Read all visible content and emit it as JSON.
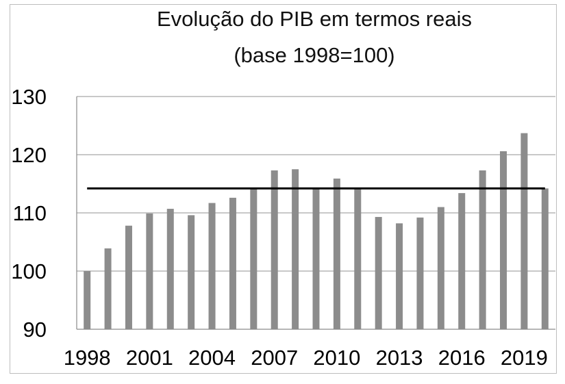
{
  "chart_data": {
    "type": "bar",
    "title": "Evolução do PIB em termos reais",
    "subtitle": "(base 1998=100)",
    "xlabel": "",
    "ylabel": "",
    "categories": [
      "1998",
      "1999",
      "2000",
      "2001",
      "2002",
      "2003",
      "2004",
      "2005",
      "2006",
      "2007",
      "2008",
      "2009",
      "2010",
      "2011",
      "2012",
      "2013",
      "2014",
      "2015",
      "2016",
      "2017",
      "2018",
      "2019",
      "2020"
    ],
    "x_tick_labels": [
      "1998",
      "2001",
      "2004",
      "2007",
      "2010",
      "2013",
      "2016",
      "2019"
    ],
    "values": [
      100,
      103.9,
      107.8,
      109.9,
      110.7,
      109.6,
      111.7,
      112.6,
      114.2,
      117.3,
      117.5,
      114.2,
      115.9,
      114.2,
      109.3,
      108.2,
      109.2,
      111.0,
      113.4,
      117.3,
      120.6,
      123.7,
      114.2
    ],
    "reference_line": 114.2,
    "ylim": [
      90,
      130
    ],
    "y_ticks": [
      90,
      100,
      110,
      120,
      130
    ],
    "grid": true,
    "bar_color": "#8c8c8c",
    "line_color": "#000000",
    "grid_color": "#a6a6a6"
  }
}
